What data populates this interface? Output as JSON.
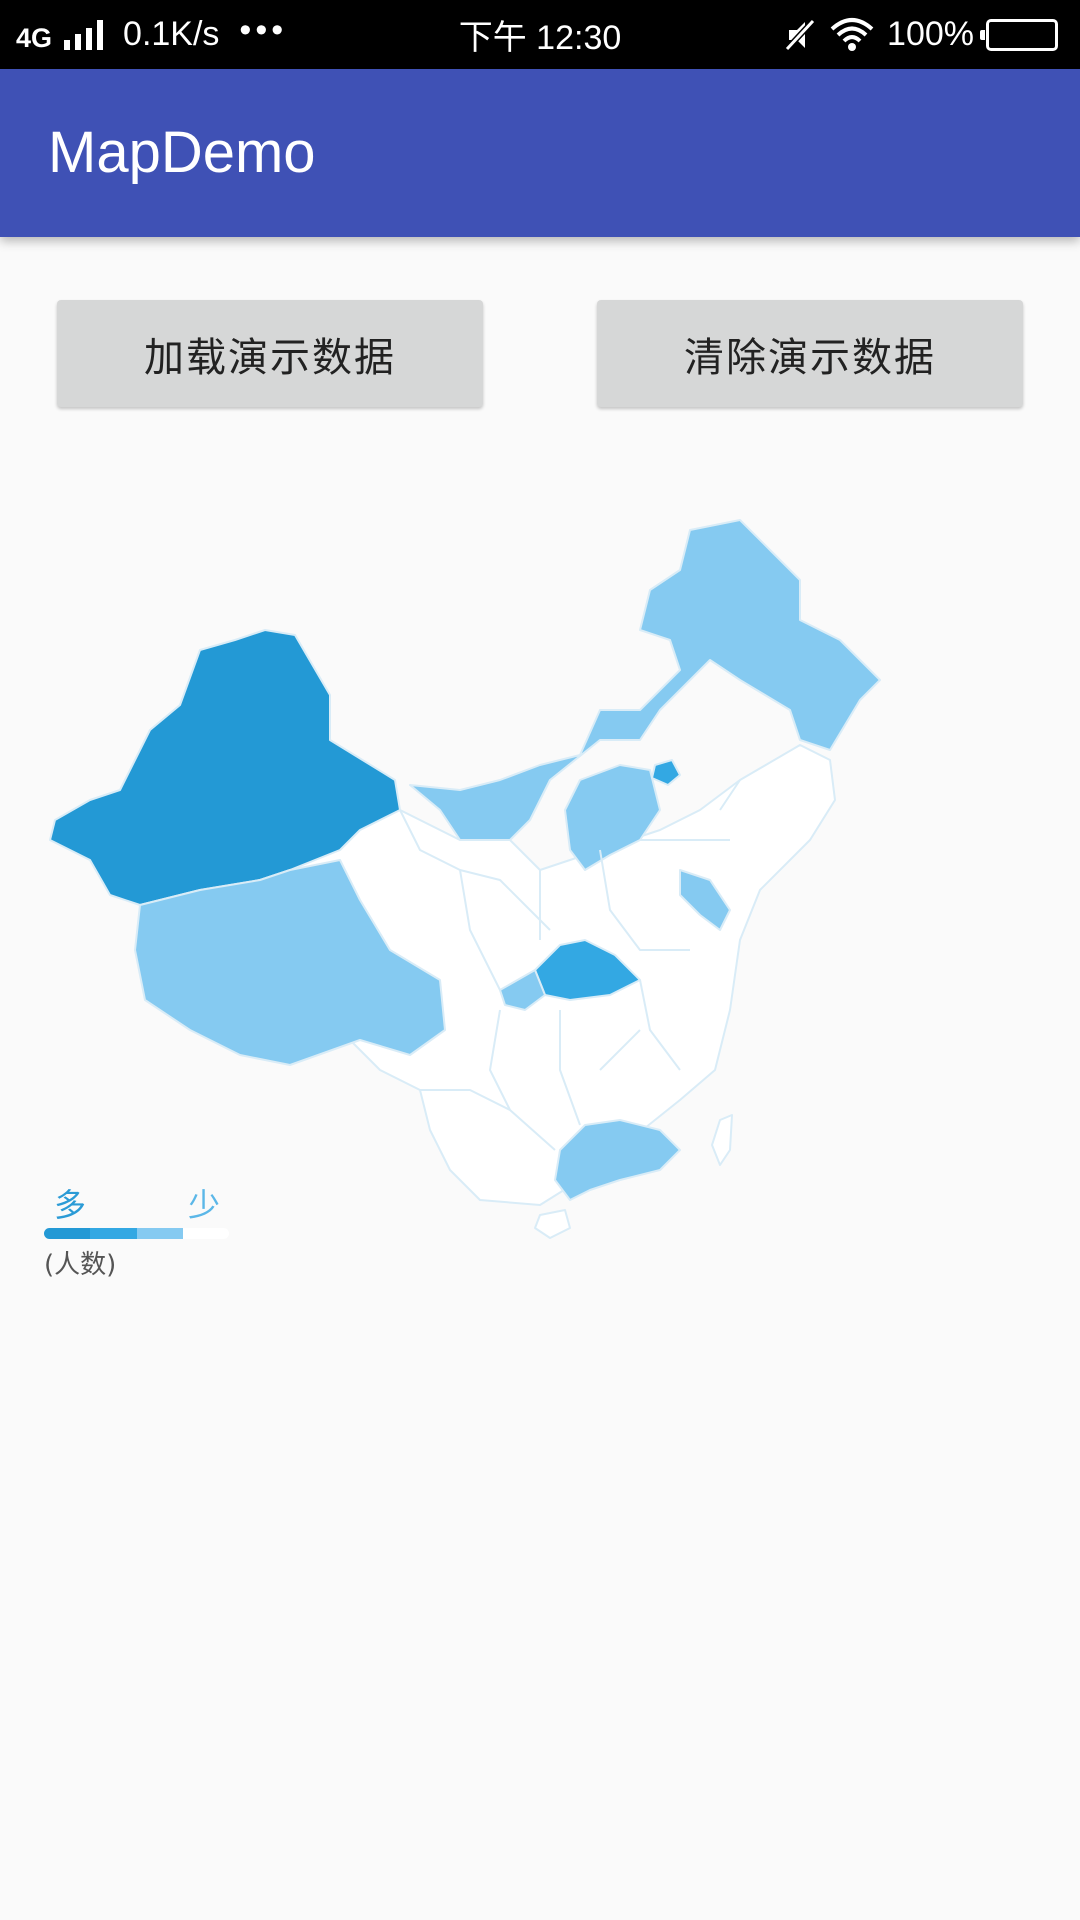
{
  "status_bar": {
    "network": "4G",
    "speed": "0.1K/s",
    "more": "•••",
    "time": "下午 12:30",
    "battery": "100%",
    "icons": [
      "signal-icon",
      "mute-icon",
      "wifi-icon",
      "battery-icon"
    ]
  },
  "app_bar": {
    "title": "MapDemo"
  },
  "buttons": {
    "load_label": "加载演示数据",
    "clear_label": "清除演示数据"
  },
  "map": {
    "colors": {
      "level1": "#2399d5",
      "level2": "#33a8e3",
      "level3": "#85caf1",
      "level4": "#ffffff",
      "border": "#d9ecf7"
    }
  },
  "legend": {
    "more": "多",
    "less": "少",
    "unit": "(人数)",
    "scale_colors": [
      "#2399d5",
      "#33a8e3",
      "#85caf1",
      "#ffffff"
    ]
  }
}
